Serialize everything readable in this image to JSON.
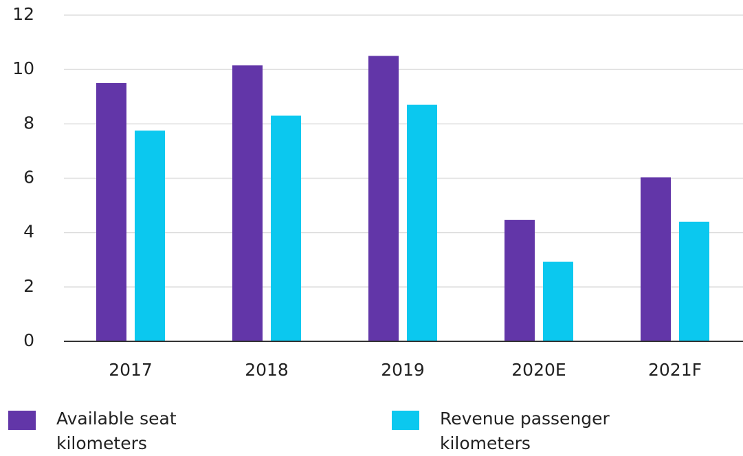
{
  "chart_data": {
    "type": "bar",
    "categories": [
      "2017",
      "2018",
      "2019",
      "2020E",
      "2021F"
    ],
    "series": [
      {
        "name": "Available seat kilometers",
        "color": "#6236a8",
        "values": [
          9.5,
          10.15,
          10.5,
          4.47,
          6.03
        ]
      },
      {
        "name": "Revenue passenger kilometers",
        "color": "#0bc8ef",
        "values": [
          7.75,
          8.3,
          8.7,
          2.93,
          4.4
        ]
      }
    ],
    "ylim": [
      0,
      12
    ],
    "yticks": [
      0,
      2,
      4,
      6,
      8,
      10,
      12
    ],
    "grid": true
  }
}
